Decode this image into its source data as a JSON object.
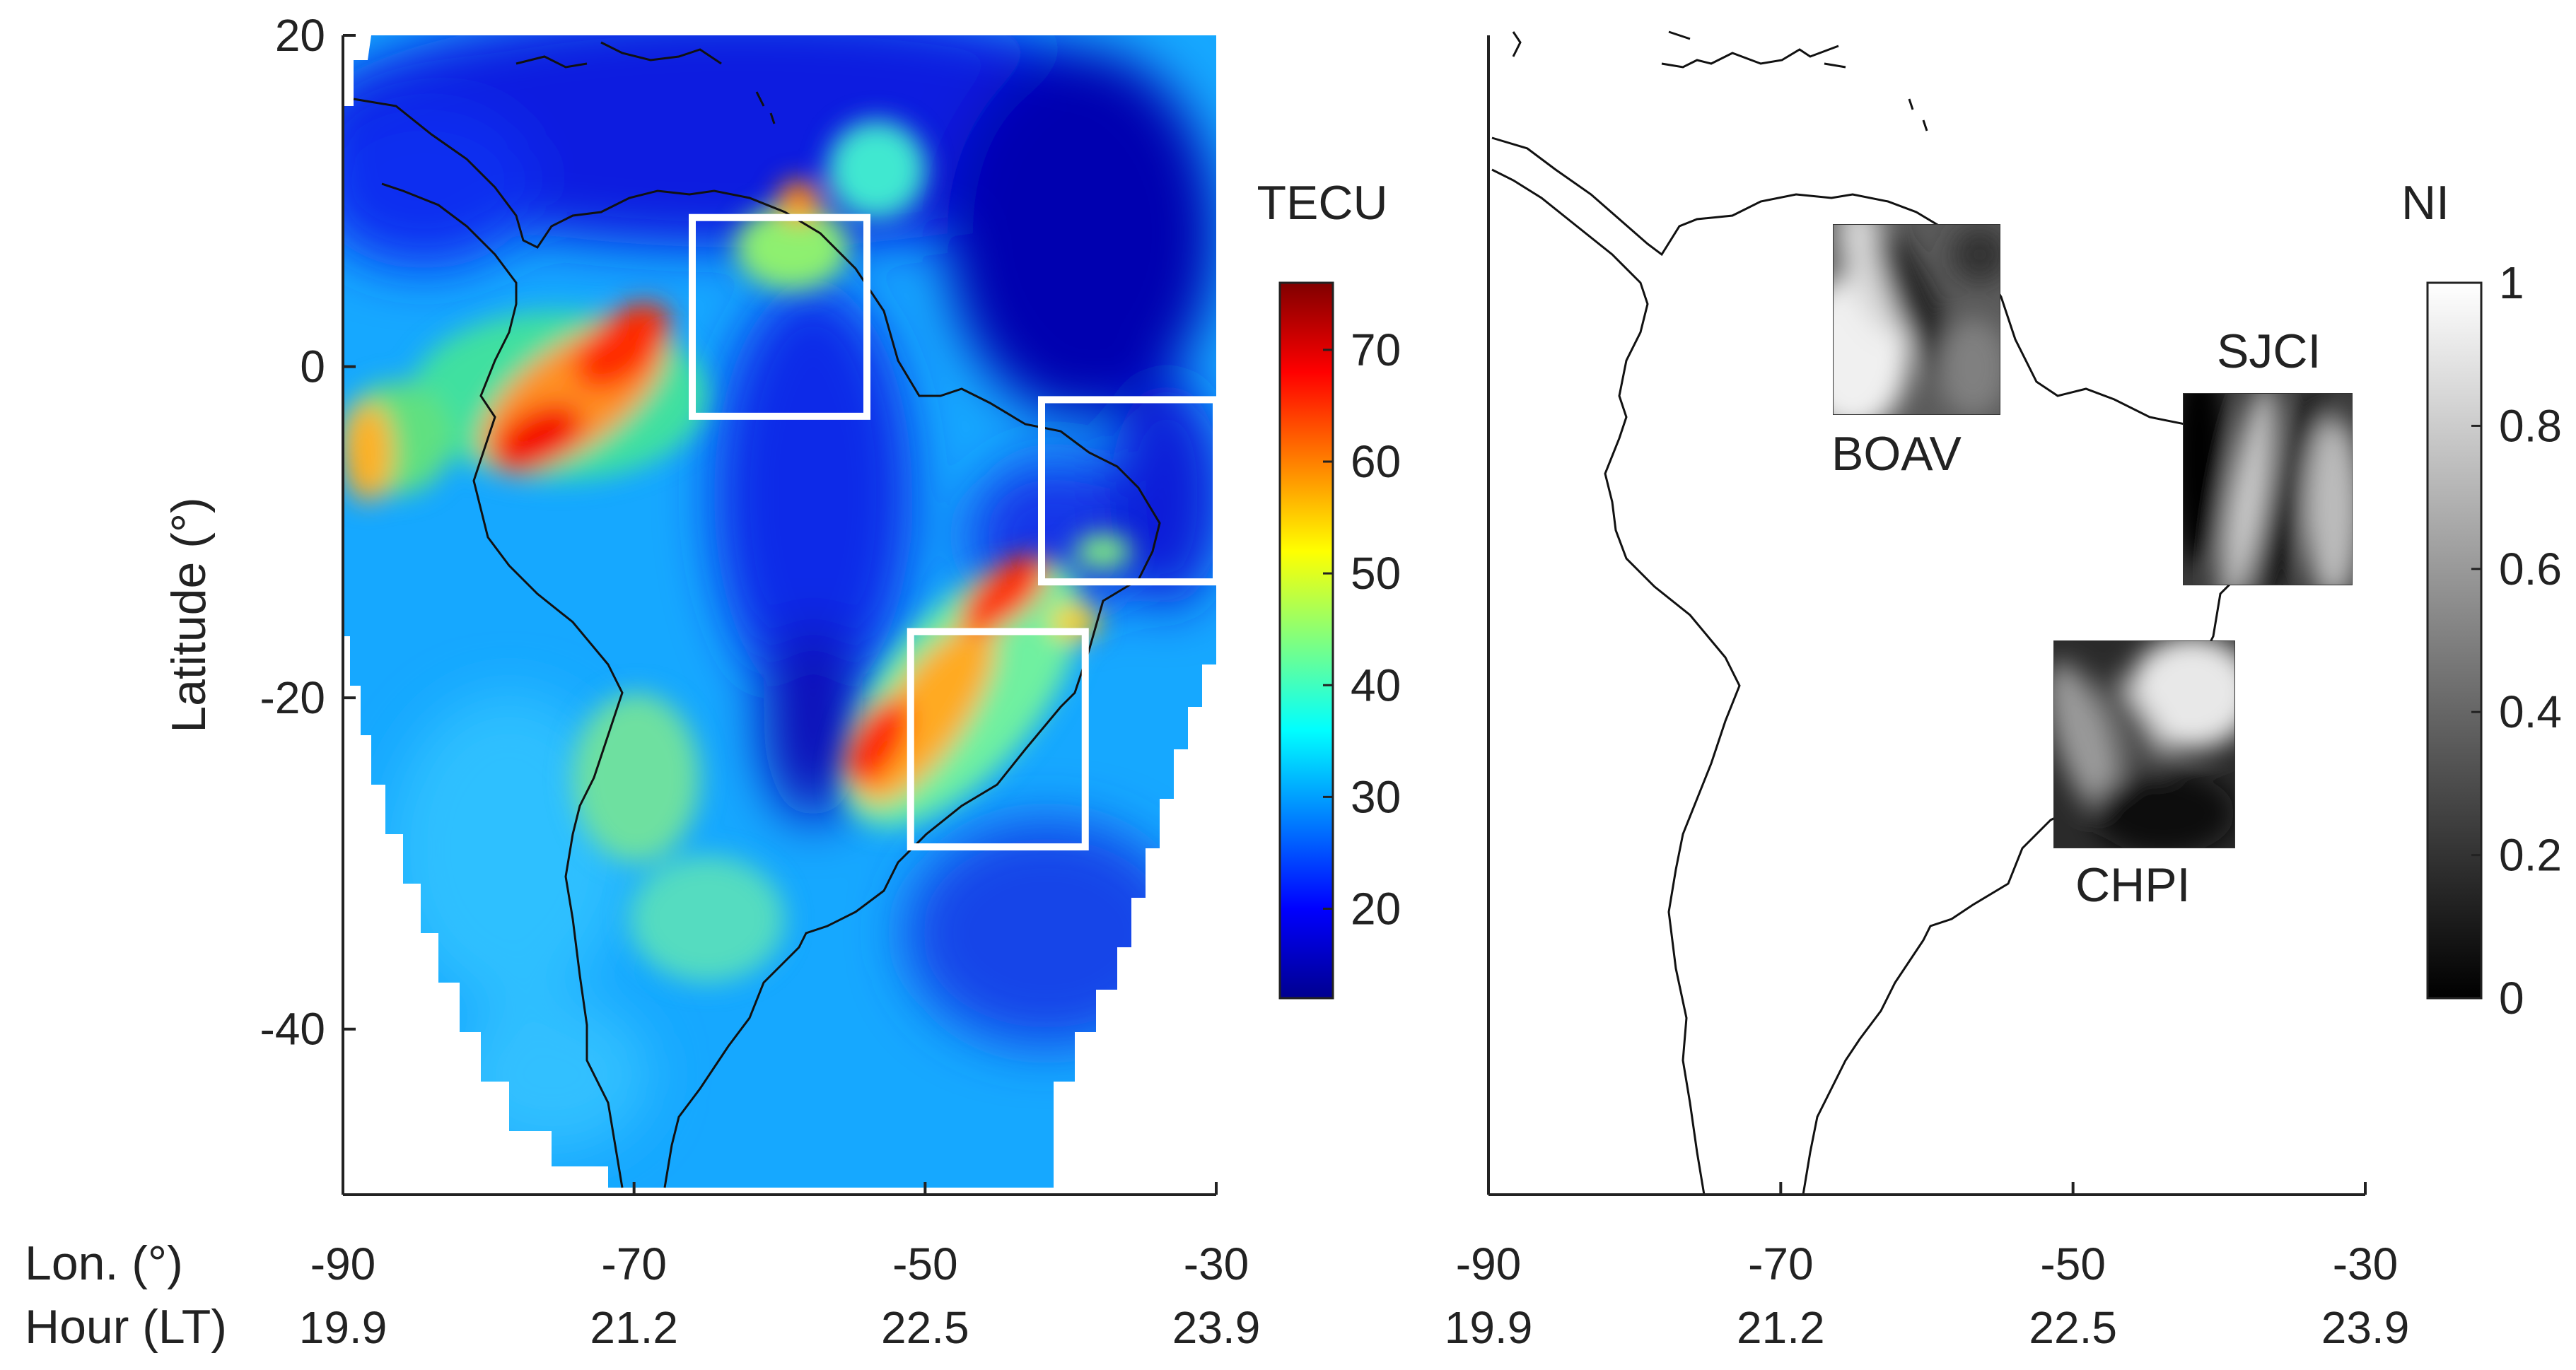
{
  "left_map": {
    "ylabel": "Latitude (°)",
    "yticks": [
      20,
      0,
      -20,
      -40
    ],
    "ylim": [
      -50,
      20
    ],
    "xlim": [
      -90,
      -30
    ],
    "colorbar": {
      "title": "TECU",
      "range": [
        12,
        76
      ],
      "ticks": [
        20,
        30,
        40,
        50,
        60,
        70
      ],
      "colormap": "jet"
    },
    "highlight_boxes": [
      {
        "lon": [
          -66,
          -54
        ],
        "lat": [
          -3,
          9
        ]
      },
      {
        "lon": [
          -42,
          -30
        ],
        "lat": [
          -13,
          -2
        ]
      },
      {
        "lon": [
          -51,
          -39
        ],
        "lat": [
          -29,
          -16
        ]
      }
    ]
  },
  "right_map": {
    "xlim": [
      -90,
      -30
    ],
    "ylim": [
      -50,
      20
    ],
    "colorbar": {
      "title": "NI",
      "range": [
        0,
        1
      ],
      "ticks": [
        0,
        0.2,
        0.4,
        0.6,
        0.8,
        1
      ],
      "tick_labels": [
        "0",
        "0.2",
        "0.4",
        "0.6",
        "0.8",
        "1"
      ],
      "colormap": "gray"
    },
    "stations": [
      {
        "name": "BOAV",
        "label_position": "below"
      },
      {
        "name": "SJCI",
        "label_position": "above"
      },
      {
        "name": "CHPI",
        "label_position": "below"
      }
    ]
  },
  "x_axis": {
    "row1_label": "Lon. (°)",
    "row2_label": "Hour (LT)",
    "lon_ticks": [
      "-90",
      "-70",
      "-50",
      "-30"
    ],
    "hour_ticks": [
      "19.9",
      "21.2",
      "22.5",
      "23.9"
    ]
  }
}
